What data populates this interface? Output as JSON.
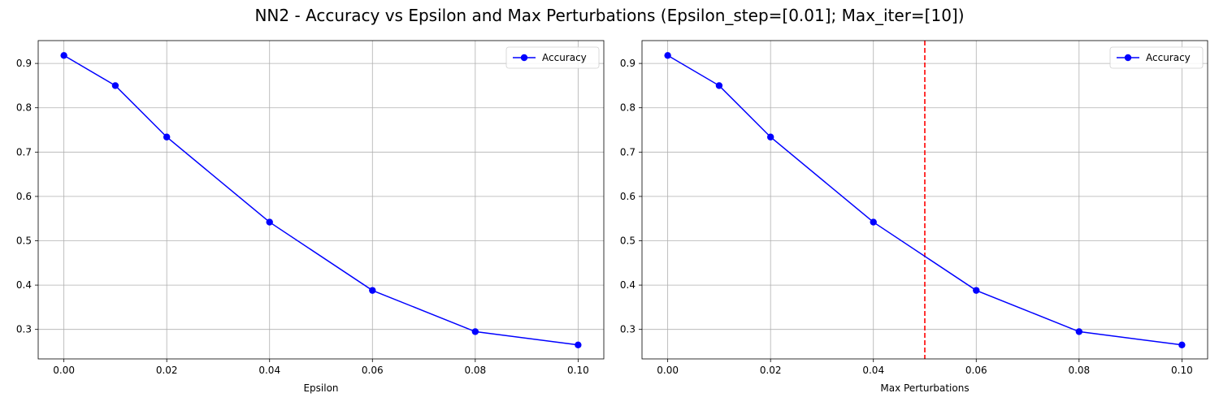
{
  "figure": {
    "suptitle": "NN2 - Accuracy vs Epsilon and Max Perturbations (Epsilon_step=[0.01]; Max_iter=[10])"
  },
  "colors": {
    "series": "#0000ff",
    "vline": "#ff0000",
    "grid": "#b0b0b0"
  },
  "chart_data": [
    {
      "type": "line",
      "title": "",
      "xlabel": "Epsilon",
      "ylabel": "",
      "xlim": [
        -0.005,
        0.105
      ],
      "ylim": [
        0.2335,
        0.9515
      ],
      "xticks": [
        0.0,
        0.02,
        0.04,
        0.06,
        0.08,
        0.1
      ],
      "xtick_labels": [
        "0.00",
        "0.02",
        "0.04",
        "0.06",
        "0.08",
        "0.10"
      ],
      "yticks": [
        0.3,
        0.4,
        0.5,
        0.6,
        0.7,
        0.8,
        0.9
      ],
      "ytick_labels": [
        "0.3",
        "0.4",
        "0.5",
        "0.6",
        "0.7",
        "0.8",
        "0.9"
      ],
      "grid": true,
      "legend": "upper right",
      "series": [
        {
          "name": "Accuracy",
          "marker": "circle",
          "x": [
            0.0,
            0.01,
            0.02,
            0.04,
            0.06,
            0.08,
            0.1
          ],
          "y": [
            0.918,
            0.85,
            0.734,
            0.542,
            0.388,
            0.295,
            0.265
          ]
        }
      ]
    },
    {
      "type": "line",
      "title": "",
      "xlabel": "Max Perturbations",
      "ylabel": "",
      "xlim": [
        -0.005,
        0.105
      ],
      "ylim": [
        0.2335,
        0.9515
      ],
      "xticks": [
        0.0,
        0.02,
        0.04,
        0.06,
        0.08,
        0.1
      ],
      "xtick_labels": [
        "0.00",
        "0.02",
        "0.04",
        "0.06",
        "0.08",
        "0.10"
      ],
      "yticks": [
        0.3,
        0.4,
        0.5,
        0.6,
        0.7,
        0.8,
        0.9
      ],
      "ytick_labels": [
        "0.3",
        "0.4",
        "0.5",
        "0.6",
        "0.7",
        "0.8",
        "0.9"
      ],
      "grid": true,
      "legend": "upper right",
      "vline": {
        "x": 0.05,
        "style": "dashed"
      },
      "series": [
        {
          "name": "Accuracy",
          "marker": "circle",
          "x": [
            0.0,
            0.01,
            0.02,
            0.04,
            0.06,
            0.08,
            0.1
          ],
          "y": [
            0.918,
            0.85,
            0.734,
            0.542,
            0.388,
            0.295,
            0.265
          ]
        }
      ]
    }
  ]
}
